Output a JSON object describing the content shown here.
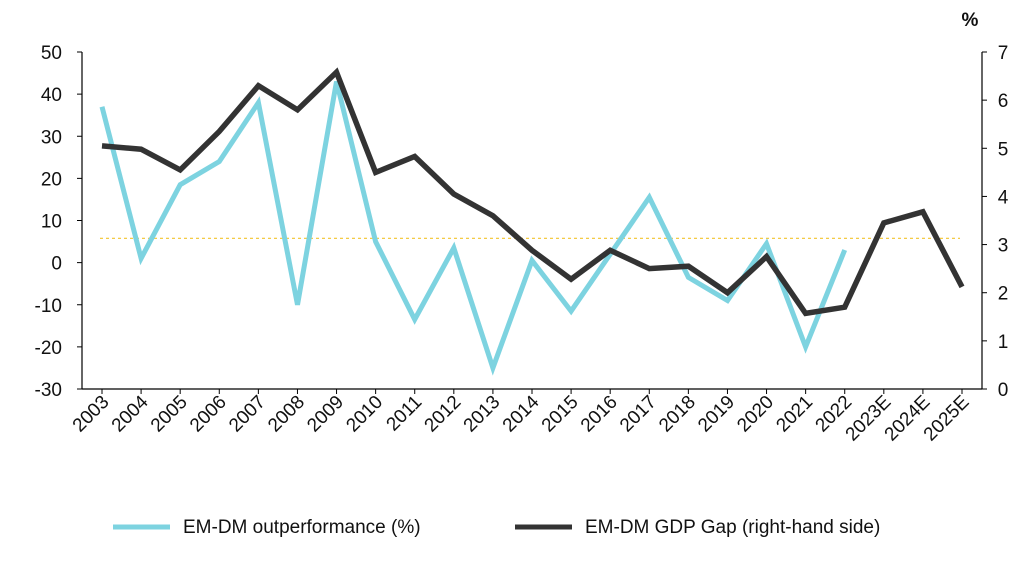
{
  "chart_data": {
    "type": "line",
    "title": "",
    "categories": [
      "2003",
      "2004",
      "2005",
      "2006",
      "2007",
      "2008",
      "2009",
      "2010",
      "2011",
      "2012",
      "2013",
      "2014",
      "2015",
      "2016",
      "2017",
      "2018",
      "2019",
      "2020",
      "2021",
      "2022",
      "2023E",
      "2024E",
      "2025E"
    ],
    "y_left": {
      "label": "",
      "ylim": [
        -30,
        50
      ],
      "ticks": [
        50,
        40,
        30,
        20,
        10,
        0,
        -10,
        -20,
        -30
      ]
    },
    "y_right": {
      "label": "%",
      "ylim": [
        0,
        7
      ],
      "ticks": [
        7,
        6,
        5,
        4,
        3,
        2,
        1,
        0
      ]
    },
    "series": [
      {
        "name": "EM-DM outperformance (%)",
        "axis": "left",
        "color": "#7DD3E0",
        "values": [
          37,
          1,
          18.5,
          24,
          38,
          -10,
          43,
          5,
          -13.5,
          3.5,
          -25,
          0.5,
          -11.5,
          2,
          15.5,
          -3.5,
          -9,
          4.5,
          -20,
          3,
          null,
          null,
          null
        ]
      },
      {
        "name": "EM-DM GDP Gap (right-hand side)",
        "axis": "right",
        "color": "#333333",
        "values": [
          5.05,
          4.98,
          4.55,
          5.35,
          6.3,
          5.8,
          6.58,
          4.5,
          4.83,
          4.05,
          3.6,
          2.88,
          2.28,
          2.88,
          2.5,
          2.55,
          2.0,
          2.75,
          1.57,
          1.7,
          3.45,
          3.68,
          2.12
        ]
      }
    ],
    "reference_line": {
      "axis": "right",
      "value": 3.13,
      "color": "#F2C42C",
      "style": "dashed"
    },
    "legend": {
      "placement": "bottom"
    },
    "grid": false
  }
}
